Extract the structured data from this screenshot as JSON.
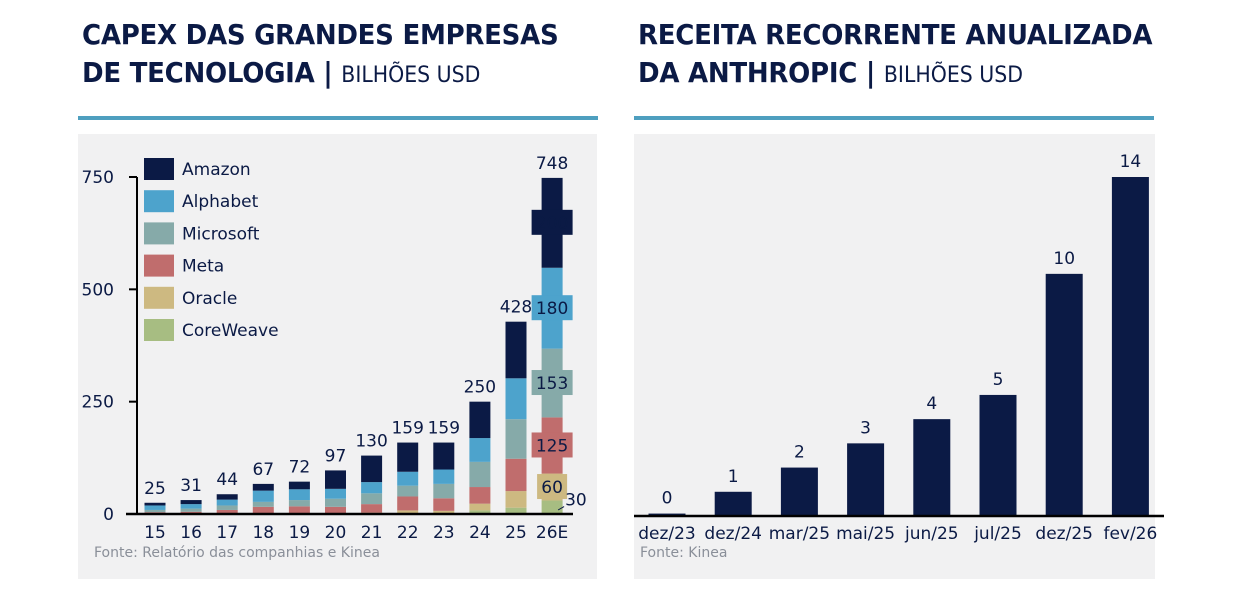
{
  "left": {
    "title_line1": "CAPEX DAS GRANDES EMPRESAS",
    "title_line2": "DE TECNOLOGIA",
    "separator": "|",
    "unit": "BILHÕES USD",
    "source": "Fonte: Relatório das companhias e  Kinea"
  },
  "right": {
    "title_line1": "RECEITA RECORRENTE ANUALIZADA",
    "title_line2": "DA ANTHROPIC",
    "separator": "|",
    "unit": "BILHÕES USD",
    "source": "Fonte: Kinea"
  },
  "colors": {
    "Amazon": "#0b1a45",
    "Alphabet": "#4da3cc",
    "Microsoft": "#86aaa9",
    "Meta": "#c06d6d",
    "Oracle": "#cdb981",
    "CoreWeave": "#a7bd82",
    "accent_rule": "#4e9fbf",
    "panel_bg": "#f1f1f2",
    "bar_dark": "#0b1a45"
  },
  "chart_data": [
    {
      "type": "bar",
      "stacked": true,
      "title": "CAPEX DAS GRANDES EMPRESAS DE TECNOLOGIA | BILHÕES USD",
      "xlabel": "",
      "ylabel": "",
      "ylim": [
        0,
        750
      ],
      "yticks": [
        0,
        250,
        500,
        750
      ],
      "grid": false,
      "legend": {
        "position": "top-left",
        "entries": [
          "Amazon",
          "Alphabet",
          "Microsoft",
          "Meta",
          "Oracle",
          "CoreWeave"
        ]
      },
      "categories": [
        "15",
        "16",
        "17",
        "18",
        "19",
        "20",
        "21",
        "22",
        "23",
        "24",
        "25",
        "26E"
      ],
      "totals": [
        25,
        31,
        44,
        67,
        72,
        97,
        130,
        159,
        159,
        250,
        428,
        748
      ],
      "series": [
        {
          "name": "CoreWeave",
          "values": [
            0,
            0,
            0,
            0,
            0,
            0,
            0,
            0,
            0,
            8,
            14,
            30
          ]
        },
        {
          "name": "Oracle",
          "values": [
            1,
            1,
            2,
            2,
            2,
            1,
            3,
            8,
            7,
            15,
            37,
            60
          ]
        },
        {
          "name": "Meta",
          "values": [
            3,
            4,
            7,
            14,
            15,
            15,
            19,
            31,
            28,
            37,
            72,
            125
          ]
        },
        {
          "name": "Microsoft",
          "values": [
            5,
            7,
            10,
            11,
            14,
            18,
            24,
            24,
            32,
            56,
            88,
            153
          ]
        },
        {
          "name": "Alphabet",
          "values": [
            10,
            10,
            13,
            25,
            24,
            22,
            25,
            31,
            32,
            53,
            91,
            180
          ]
        },
        {
          "name": "Amazon",
          "values": [
            6,
            9,
            12,
            15,
            17,
            41,
            59,
            65,
            60,
            81,
            126,
            200
          ]
        }
      ],
      "annotations": [
        {
          "category": "26E",
          "series": "Amazon",
          "label": "200"
        },
        {
          "category": "26E",
          "series": "Alphabet",
          "label": "180"
        },
        {
          "category": "26E",
          "series": "Microsoft",
          "label": "153"
        },
        {
          "category": "26E",
          "series": "Meta",
          "label": "125"
        },
        {
          "category": "26E",
          "series": "Oracle",
          "label": "60"
        },
        {
          "category": "26E",
          "series": "CoreWeave",
          "label": "30"
        }
      ]
    },
    {
      "type": "bar",
      "title": "RECEITA RECORRENTE ANUALIZADA DA ANTHROPIC | BILHÕES USD",
      "xlabel": "",
      "ylabel": "",
      "ylim": [
        0,
        14
      ],
      "grid": false,
      "categories": [
        "dez/23",
        "dez/24",
        "mar/25",
        "mai/25",
        "jun/25",
        "jul/25",
        "dez/25",
        "fev/26"
      ],
      "values": [
        0.1,
        1,
        2,
        3,
        4,
        5,
        10,
        14
      ],
      "data_labels": [
        "0",
        "1",
        "2",
        "3",
        "4",
        "5",
        "10",
        "14"
      ]
    }
  ]
}
